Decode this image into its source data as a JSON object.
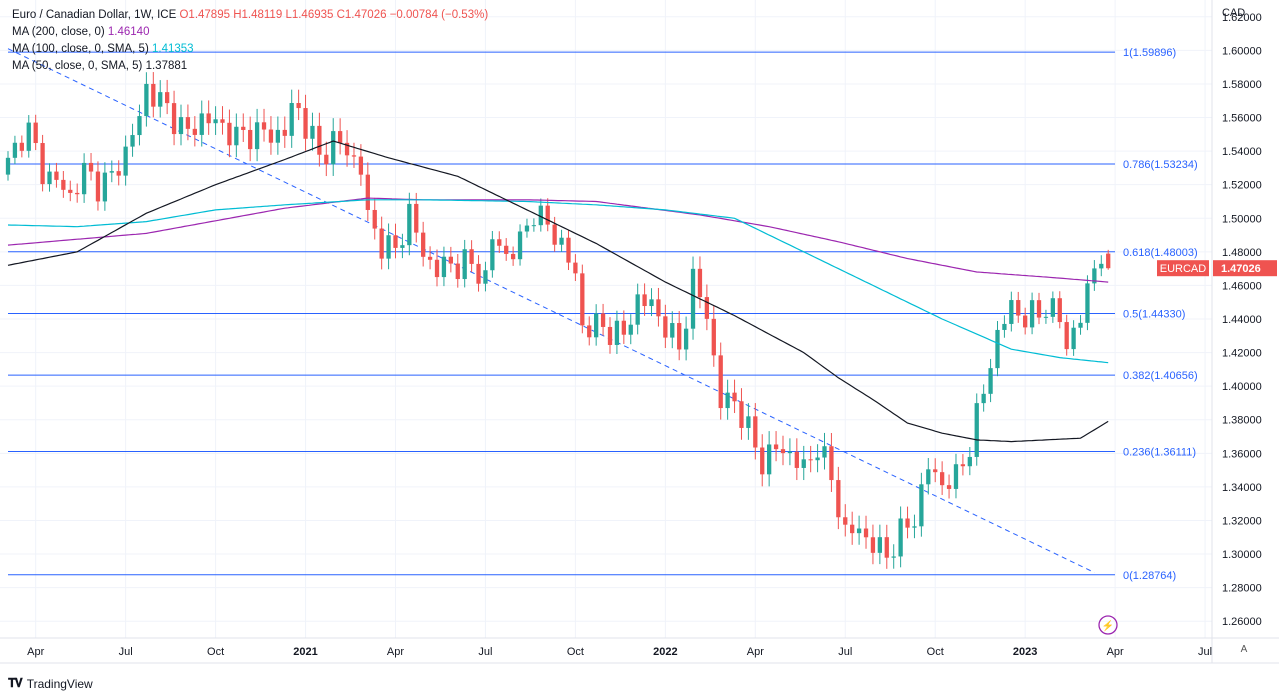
{
  "header": {
    "title": "Euro / Canadian Dollar, 1W, ICE",
    "open": "O1.47895",
    "high": "H1.48119",
    "low": "L1.46935",
    "close": "C1.47026",
    "change": "−0.00784 (−0.53%)",
    "ma200_label": "MA (200, close, 0)",
    "ma200_value": "1.46140",
    "ma100_label": "MA (100, close, 0, SMA, 5)",
    "ma100_value": "1.41353",
    "ma50_label": "MA (50, close, 0, SMA, 5)",
    "ma50_value": "1.37881"
  },
  "currency_label": "CAD",
  "symbol_badge": "EURCAD",
  "price_badge": "1.47026",
  "footer": {
    "brand": "TradingView",
    "auto_label": "A"
  },
  "colors": {
    "up": "#26a69a",
    "down": "#ef5350",
    "fib": "#2962ff",
    "ma200": "#9c27b0",
    "ma100": "#00bcd4",
    "ma50": "#131722",
    "trend": "#2962ff",
    "badge": "#ef5350"
  },
  "chart_data": {
    "type": "candlestick",
    "title": "Euro / Canadian Dollar, 1W, ICE",
    "ylabel": "CAD",
    "ylim": [
      1.25,
      1.63
    ],
    "y_ticks": [
      "1.26000",
      "1.28000",
      "1.30000",
      "1.32000",
      "1.34000",
      "1.36000",
      "1.38000",
      "1.40000",
      "1.42000",
      "1.44000",
      "1.46000",
      "1.48000",
      "1.50000",
      "1.52000",
      "1.54000",
      "1.56000",
      "1.58000",
      "1.60000",
      "1.62000"
    ],
    "x_ticks": [
      {
        "label": "Apr",
        "t": 4,
        "bold": false
      },
      {
        "label": "Jul",
        "t": 17,
        "bold": false
      },
      {
        "label": "Oct",
        "t": 30,
        "bold": false
      },
      {
        "label": "2021",
        "t": 43,
        "bold": true
      },
      {
        "label": "Apr",
        "t": 56,
        "bold": false
      },
      {
        "label": "Jul",
        "t": 69,
        "bold": false
      },
      {
        "label": "Oct",
        "t": 82,
        "bold": false
      },
      {
        "label": "2022",
        "t": 95,
        "bold": true
      },
      {
        "label": "Apr",
        "t": 108,
        "bold": false
      },
      {
        "label": "Jul",
        "t": 121,
        "bold": false
      },
      {
        "label": "Oct",
        "t": 134,
        "bold": false
      },
      {
        "label": "2023",
        "t": 147,
        "bold": true
      },
      {
        "label": "Apr",
        "t": 160,
        "bold": false
      },
      {
        "label": "Jul",
        "t": 173,
        "bold": false
      }
    ],
    "t_range": [
      0,
      174
    ],
    "fib_levels": [
      {
        "label": "1(1.59896)",
        "value": 1.59896
      },
      {
        "label": "0.786(1.53234)",
        "value": 1.53234
      },
      {
        "label": "0.618(1.48003)",
        "value": 1.48003
      },
      {
        "label": "0.5(1.44330)",
        "value": 1.4433
      },
      {
        "label": "0.382(1.40656)",
        "value": 1.40656
      },
      {
        "label": "0.236(1.36111)",
        "value": 1.36111
      },
      {
        "label": "0(1.28764)",
        "value": 1.28764
      }
    ],
    "trendline": {
      "t1": 0,
      "v1": 1.601,
      "t2": 157,
      "v2": 1.289
    },
    "anchors": [
      [
        0,
        1.532
      ],
      [
        2,
        1.55
      ],
      [
        3,
        1.552
      ],
      [
        5,
        1.528
      ],
      [
        7,
        1.522
      ],
      [
        9,
        1.513
      ],
      [
        11,
        1.528
      ],
      [
        13,
        1.52
      ],
      [
        15,
        1.524
      ],
      [
        17,
        1.54
      ],
      [
        19,
        1.56
      ],
      [
        20,
        1.578
      ],
      [
        23,
        1.565
      ],
      [
        26,
        1.55
      ],
      [
        28,
        1.56
      ],
      [
        31,
        1.555
      ],
      [
        33,
        1.548
      ],
      [
        36,
        1.552
      ],
      [
        38,
        1.549
      ],
      [
        40,
        1.552
      ],
      [
        41,
        1.565
      ],
      [
        42,
        1.564
      ],
      [
        44,
        1.548
      ],
      [
        45,
        1.535
      ],
      [
        47,
        1.547
      ],
      [
        49,
        1.54
      ],
      [
        51,
        1.53
      ],
      [
        52,
        1.5
      ],
      [
        54,
        1.485
      ],
      [
        56,
        1.48
      ],
      [
        58,
        1.504
      ],
      [
        60,
        1.478
      ],
      [
        62,
        1.47
      ],
      [
        64,
        1.472
      ],
      [
        66,
        1.474
      ],
      [
        69,
        1.465
      ],
      [
        70,
        1.488
      ],
      [
        72,
        1.478
      ],
      [
        74,
        1.485
      ],
      [
        76,
        1.505
      ],
      [
        78,
        1.495
      ],
      [
        80,
        1.485
      ],
      [
        82,
        1.465
      ],
      [
        83,
        1.436
      ],
      [
        86,
        1.435
      ],
      [
        89,
        1.43
      ],
      [
        91,
        1.452
      ],
      [
        93,
        1.448
      ],
      [
        95,
        1.436
      ],
      [
        97,
        1.422
      ],
      [
        99,
        1.463
      ],
      [
        101,
        1.443
      ],
      [
        103,
        1.39
      ],
      [
        105,
        1.392
      ],
      [
        107,
        1.373
      ],
      [
        109,
        1.355
      ],
      [
        111,
        1.363
      ],
      [
        113,
        1.36
      ],
      [
        115,
        1.35
      ],
      [
        117,
        1.365
      ],
      [
        119,
        1.345
      ],
      [
        121,
        1.312
      ],
      [
        123,
        1.315
      ],
      [
        125,
        1.305
      ],
      [
        127,
        1.3
      ],
      [
        129,
        1.312
      ],
      [
        131,
        1.322
      ],
      [
        133,
        1.352
      ],
      [
        135,
        1.342
      ],
      [
        137,
        1.345
      ],
      [
        139,
        1.365
      ],
      [
        141,
        1.397
      ],
      [
        142,
        1.415
      ],
      [
        143,
        1.43
      ],
      [
        145,
        1.448
      ],
      [
        147,
        1.44
      ],
      [
        149,
        1.444
      ],
      [
        150,
        1.448
      ],
      [
        152,
        1.44
      ],
      [
        153,
        1.425
      ],
      [
        155,
        1.44
      ],
      [
        157,
        1.473
      ],
      [
        158,
        1.478
      ],
      [
        159,
        1.47
      ]
    ],
    "last_candle": {
      "open": 1.47895,
      "high": 1.48119,
      "low": 1.46935,
      "close": 1.47026
    },
    "ma200": [
      [
        0,
        1.484
      ],
      [
        20,
        1.491
      ],
      [
        40,
        1.506
      ],
      [
        52,
        1.512
      ],
      [
        60,
        1.511
      ],
      [
        75,
        1.511
      ],
      [
        85,
        1.51
      ],
      [
        100,
        1.502
      ],
      [
        110,
        1.495
      ],
      [
        120,
        1.486
      ],
      [
        130,
        1.476
      ],
      [
        140,
        1.468
      ],
      [
        150,
        1.465
      ],
      [
        159,
        1.462
      ]
    ],
    "ma100": [
      [
        0,
        1.496
      ],
      [
        10,
        1.495
      ],
      [
        20,
        1.498
      ],
      [
        30,
        1.505
      ],
      [
        40,
        1.508
      ],
      [
        52,
        1.511
      ],
      [
        60,
        1.511
      ],
      [
        75,
        1.51
      ],
      [
        85,
        1.508
      ],
      [
        95,
        1.505
      ],
      [
        105,
        1.5
      ],
      [
        115,
        1.48
      ],
      [
        125,
        1.46
      ],
      [
        135,
        1.44
      ],
      [
        145,
        1.422
      ],
      [
        152,
        1.417
      ],
      [
        159,
        1.414
      ]
    ],
    "ma50": [
      [
        0,
        1.472
      ],
      [
        10,
        1.48
      ],
      [
        20,
        1.503
      ],
      [
        30,
        1.52
      ],
      [
        40,
        1.535
      ],
      [
        47,
        1.546
      ],
      [
        55,
        1.536
      ],
      [
        65,
        1.525
      ],
      [
        75,
        1.505
      ],
      [
        85,
        1.485
      ],
      [
        95,
        1.462
      ],
      [
        105,
        1.442
      ],
      [
        115,
        1.42
      ],
      [
        120,
        1.405
      ],
      [
        125,
        1.392
      ],
      [
        130,
        1.378
      ],
      [
        135,
        1.372
      ],
      [
        140,
        1.368
      ],
      [
        145,
        1.367
      ],
      [
        150,
        1.368
      ],
      [
        155,
        1.369
      ],
      [
        159,
        1.379
      ]
    ]
  }
}
